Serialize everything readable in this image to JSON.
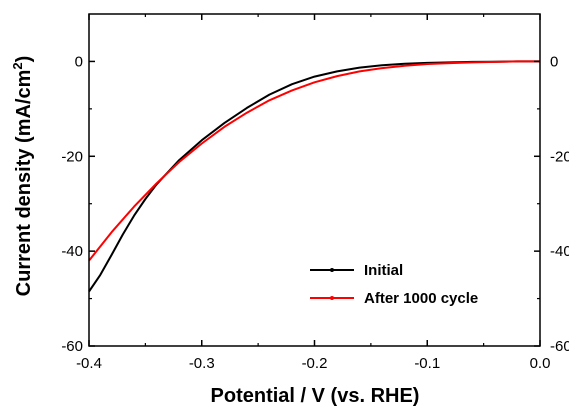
{
  "chart_data": {
    "type": "line",
    "xlabel": "Potential / V (vs. RHE)",
    "ylabel_main": "Current density (mA/cm",
    "ylabel_sup": "2",
    "ylabel_end": ")",
    "xlim": [
      -0.4,
      0.0
    ],
    "ylim": [
      -60,
      10
    ],
    "x_ticks": [
      -0.4,
      -0.3,
      -0.2,
      -0.1,
      0.0
    ],
    "x_tick_labels": [
      "-0.4",
      "-0.3",
      "-0.2",
      "-0.1",
      "0.0"
    ],
    "y_ticks": [
      0,
      -20,
      -40,
      -60
    ],
    "y_tick_labels": [
      "0",
      "-20",
      "-40",
      "-60"
    ],
    "legend_position": "lower-right",
    "grid": false,
    "series": [
      {
        "name": "Initial",
        "color": "#000000",
        "x": [
          0.0,
          -0.02,
          -0.04,
          -0.06,
          -0.08,
          -0.1,
          -0.12,
          -0.14,
          -0.16,
          -0.18,
          -0.2,
          -0.22,
          -0.24,
          -0.26,
          -0.28,
          -0.3,
          -0.32,
          -0.34,
          -0.35,
          -0.36,
          -0.37,
          -0.38,
          -0.39,
          -0.4
        ],
        "y": [
          0.0,
          0.0,
          -0.05,
          -0.1,
          -0.2,
          -0.3,
          -0.5,
          -0.8,
          -1.3,
          -2.1,
          -3.2,
          -4.8,
          -7.0,
          -9.8,
          -13.0,
          -16.6,
          -20.8,
          -25.9,
          -29.0,
          -32.5,
          -36.5,
          -40.8,
          -45.0,
          -48.5
        ]
      },
      {
        "name": "After 1000 cycle",
        "color": "#ff0000",
        "x": [
          0.0,
          -0.02,
          -0.04,
          -0.06,
          -0.08,
          -0.1,
          -0.12,
          -0.14,
          -0.16,
          -0.18,
          -0.2,
          -0.22,
          -0.24,
          -0.26,
          -0.28,
          -0.3,
          -0.32,
          -0.34,
          -0.36,
          -0.38,
          -0.4
        ],
        "y": [
          0.0,
          0.0,
          -0.1,
          -0.2,
          -0.35,
          -0.55,
          -0.9,
          -1.4,
          -2.1,
          -3.1,
          -4.4,
          -6.1,
          -8.2,
          -10.8,
          -13.8,
          -17.3,
          -21.2,
          -25.7,
          -30.6,
          -36.0,
          -42.0
        ]
      }
    ]
  }
}
